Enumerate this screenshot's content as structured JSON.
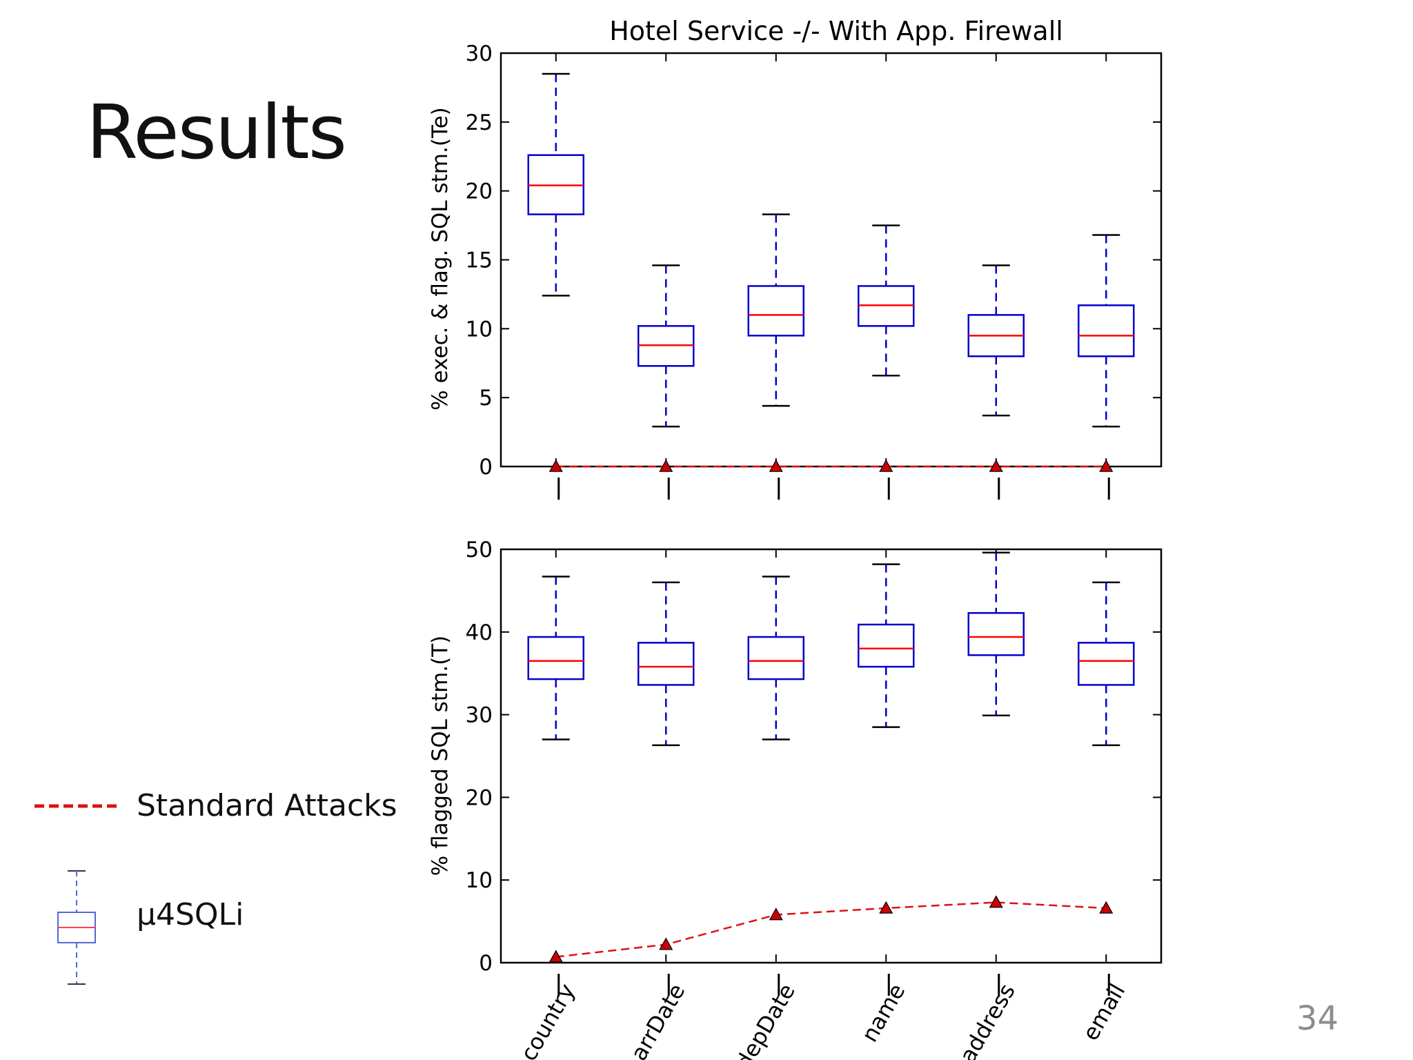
{
  "slide": {
    "title": "Results",
    "number": "34"
  },
  "legend": {
    "standard_label": "Standard Attacks",
    "box_label": "μ4SQLi"
  },
  "colors": {
    "box": "#0000cc",
    "median": "#ff0000",
    "marker": "#cc0000",
    "standard_line": "#dd1111"
  },
  "chart_data": [
    {
      "type": "box",
      "title": "Hotel Service -/- With App. Firewall",
      "ylabel": "% exec. & flag. SQL stm.(Te)",
      "ylim": [
        0,
        30
      ],
      "yticks": [
        0,
        5,
        10,
        15,
        20,
        25,
        30
      ],
      "categories": [
        "country",
        "arrDate",
        "depDate",
        "name",
        "address",
        "email"
      ],
      "boxes": [
        {
          "min": 12.4,
          "q1": 18.3,
          "median": 20.4,
          "q3": 22.6,
          "max": 28.5
        },
        {
          "min": 2.9,
          "q1": 7.3,
          "median": 8.8,
          "q3": 10.2,
          "max": 14.6
        },
        {
          "min": 4.4,
          "q1": 9.5,
          "median": 11.0,
          "q3": 13.1,
          "max": 18.3
        },
        {
          "min": 6.6,
          "q1": 10.2,
          "median": 11.7,
          "q3": 13.1,
          "max": 17.5
        },
        {
          "min": 3.7,
          "q1": 8.0,
          "median": 9.5,
          "q3": 11.0,
          "max": 14.6
        },
        {
          "min": 2.9,
          "q1": 8.0,
          "median": 9.5,
          "q3": 11.7,
          "max": 16.8
        }
      ],
      "standard_attacks": [
        0,
        0,
        0,
        0,
        0,
        0
      ]
    },
    {
      "type": "box",
      "title": "",
      "ylabel": "% flagged SQL stm.(T)",
      "ylim": [
        0,
        50
      ],
      "yticks": [
        0,
        10,
        20,
        30,
        40,
        50
      ],
      "categories": [
        "country",
        "arrDate",
        "depDate",
        "name",
        "address",
        "email"
      ],
      "boxes": [
        {
          "min": 27.0,
          "q1": 34.3,
          "median": 36.5,
          "q3": 39.4,
          "max": 46.7
        },
        {
          "min": 26.3,
          "q1": 33.6,
          "median": 35.8,
          "q3": 38.7,
          "max": 46.0
        },
        {
          "min": 27.0,
          "q1": 34.3,
          "median": 36.5,
          "q3": 39.4,
          "max": 46.7
        },
        {
          "min": 28.5,
          "q1": 35.8,
          "median": 38.0,
          "q3": 40.9,
          "max": 48.2
        },
        {
          "min": 29.9,
          "q1": 37.2,
          "median": 39.4,
          "q3": 42.3,
          "max": 49.6
        },
        {
          "min": 26.3,
          "q1": 33.6,
          "median": 36.5,
          "q3": 38.7,
          "max": 46.0
        }
      ],
      "standard_attacks": [
        0.7,
        2.2,
        5.8,
        6.6,
        7.3,
        6.6
      ]
    }
  ]
}
